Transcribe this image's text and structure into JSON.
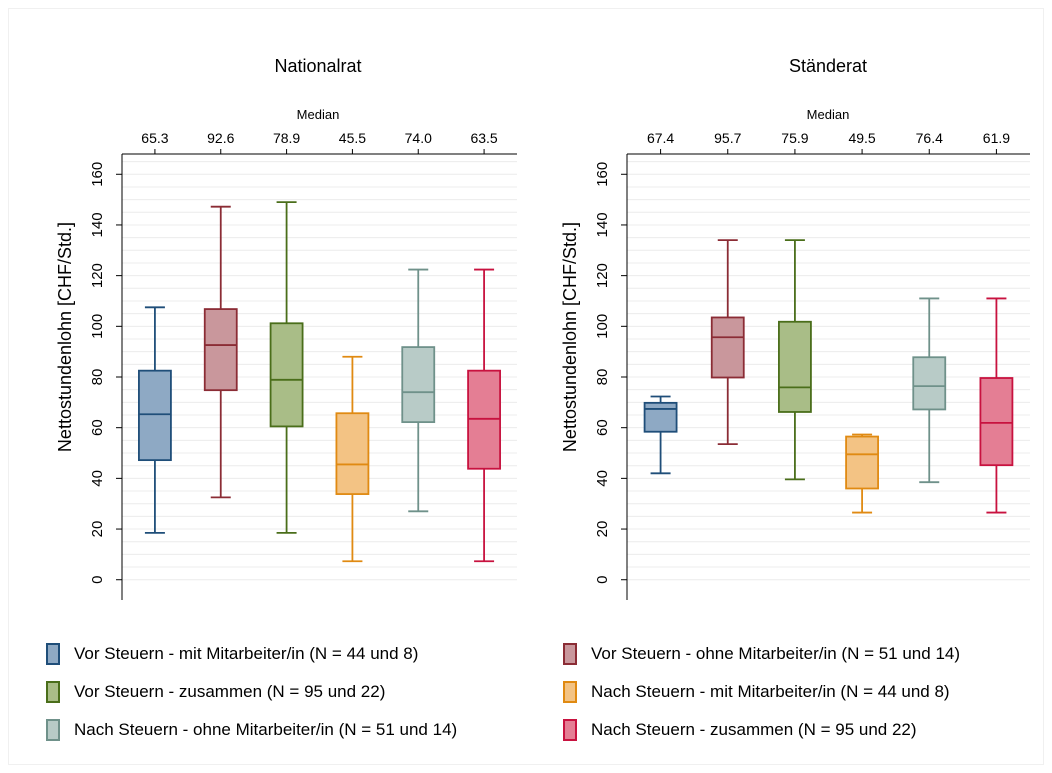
{
  "chart_data": [
    {
      "type": "box",
      "title": "Nationalrat",
      "ylabel": "Nettostundenlohn [CHF/Std.]",
      "median_header": "Median",
      "ylim": [
        -8,
        168
      ],
      "yticks": [
        0,
        20,
        40,
        60,
        80,
        100,
        120,
        140,
        160
      ],
      "medians_text": [
        "65.3",
        "92.6",
        "78.9",
        "45.5",
        "74.0",
        "63.5"
      ],
      "boxes": [
        {
          "series": 0,
          "min": 18.5,
          "q1": 47.2,
          "median": 65.3,
          "q3": 82.5,
          "max": 107.5
        },
        {
          "series": 1,
          "min": 32.5,
          "q1": 74.8,
          "median": 92.6,
          "q3": 106.8,
          "max": 147.2
        },
        {
          "series": 2,
          "min": 18.5,
          "q1": 60.5,
          "median": 78.9,
          "q3": 101.2,
          "max": 149.0
        },
        {
          "series": 3,
          "min": 7.3,
          "q1": 33.8,
          "median": 45.5,
          "q3": 65.7,
          "max": 88.0
        },
        {
          "series": 4,
          "min": 27.0,
          "q1": 62.2,
          "median": 74.0,
          "q3": 91.8,
          "max": 122.4
        },
        {
          "series": 5,
          "min": 7.3,
          "q1": 43.8,
          "median": 63.5,
          "q3": 82.5,
          "max": 122.4
        }
      ]
    },
    {
      "type": "box",
      "title": "Ständerat",
      "ylabel": "Nettostundenlohn [CHF/Std.]",
      "median_header": "Median",
      "ylim": [
        -8,
        168
      ],
      "yticks": [
        0,
        20,
        40,
        60,
        80,
        100,
        120,
        140,
        160
      ],
      "medians_text": [
        "67.4",
        "95.7",
        "75.9",
        "49.5",
        "76.4",
        "61.9"
      ],
      "boxes": [
        {
          "series": 0,
          "min": 42.0,
          "q1": 58.4,
          "median": 67.4,
          "q3": 69.8,
          "max": 72.3
        },
        {
          "series": 1,
          "min": 53.5,
          "q1": 79.8,
          "median": 95.7,
          "q3": 103.5,
          "max": 134.0
        },
        {
          "series": 2,
          "min": 39.6,
          "q1": 66.2,
          "median": 75.9,
          "q3": 101.8,
          "max": 134.0
        },
        {
          "series": 3,
          "min": 26.5,
          "q1": 36.0,
          "median": 49.5,
          "q3": 56.5,
          "max": 57.3
        },
        {
          "series": 4,
          "min": 38.5,
          "q1": 67.2,
          "median": 76.4,
          "q3": 87.8,
          "max": 111.0
        },
        {
          "series": 5,
          "min": 26.5,
          "q1": 45.2,
          "median": 61.9,
          "q3": 79.6,
          "max": 111.0
        }
      ]
    }
  ],
  "series": [
    {
      "name": "Vor Steuern - mit Mitarbeiter/in (N = 44 und 8)",
      "stroke": "#1f4e79",
      "fill": "#8ea9c4"
    },
    {
      "name": "Vor Steuern - ohne Mitarbeiter/in (N = 51 und 14)",
      "stroke": "#8b2c35",
      "fill": "#c9979c"
    },
    {
      "name": "Vor Steuern - zusammen (N = 95 und 22)",
      "stroke": "#4a6e1a",
      "fill": "#a9bd87"
    },
    {
      "name": "Nach Steuern - mit Mitarbeiter/in (N = 44 und 8)",
      "stroke": "#e08a12",
      "fill": "#f3c384"
    },
    {
      "name": "Nach Steuern - ohne Mitarbeiter/in (N = 51 und 14)",
      "stroke": "#6f918a",
      "fill": "#b8cbc7"
    },
    {
      "name": "Nach Steuern - zusammen (N = 95 und 22)",
      "stroke": "#c8123f",
      "fill": "#e47e94"
    }
  ]
}
